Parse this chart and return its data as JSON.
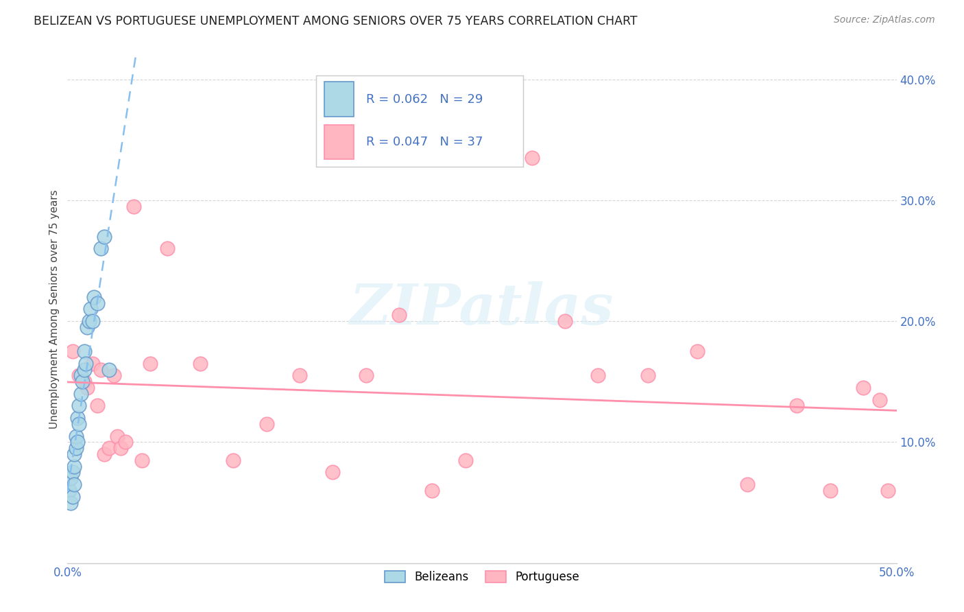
{
  "title": "BELIZEAN VS PORTUGUESE UNEMPLOYMENT AMONG SENIORS OVER 75 YEARS CORRELATION CHART",
  "source": "Source: ZipAtlas.com",
  "ylabel": "Unemployment Among Seniors over 75 years",
  "xlim": [
    0.0,
    0.5
  ],
  "ylim": [
    0.0,
    0.42
  ],
  "ytick_vals": [
    0.0,
    0.1,
    0.2,
    0.3,
    0.4
  ],
  "ytick_labels": [
    "",
    "10.0%",
    "20.0%",
    "30.0%",
    "40.0%"
  ],
  "xtick_vals": [
    0.0,
    0.1,
    0.2,
    0.3,
    0.4,
    0.5
  ],
  "xtick_labels": [
    "0.0%",
    "",
    "",
    "",
    "",
    "50.0%"
  ],
  "belizean_color": "#ADD8E6",
  "belizean_edge_color": "#6699CC",
  "portuguese_color": "#FFB6C1",
  "portuguese_edge_color": "#FF8FAB",
  "trend_belizean_color": "#87BFEE",
  "trend_portuguese_color": "#FF8FAB",
  "legend_belizean_label": "Belizeans",
  "legend_portuguese_label": "Portuguese",
  "belizean_R": 0.062,
  "belizean_N": 29,
  "portuguese_R": 0.047,
  "portuguese_N": 37,
  "watermark": "ZIPatlas",
  "belizean_x": [
    0.001,
    0.002,
    0.002,
    0.003,
    0.003,
    0.004,
    0.004,
    0.004,
    0.005,
    0.005,
    0.006,
    0.006,
    0.007,
    0.007,
    0.008,
    0.008,
    0.009,
    0.01,
    0.01,
    0.011,
    0.012,
    0.013,
    0.014,
    0.015,
    0.016,
    0.018,
    0.02,
    0.022,
    0.025
  ],
  "belizean_y": [
    0.06,
    0.05,
    0.07,
    0.055,
    0.075,
    0.065,
    0.08,
    0.09,
    0.095,
    0.105,
    0.1,
    0.12,
    0.115,
    0.13,
    0.14,
    0.155,
    0.15,
    0.16,
    0.175,
    0.165,
    0.195,
    0.2,
    0.21,
    0.2,
    0.22,
    0.215,
    0.26,
    0.27,
    0.16
  ],
  "portuguese_x": [
    0.003,
    0.007,
    0.01,
    0.012,
    0.015,
    0.018,
    0.02,
    0.022,
    0.025,
    0.028,
    0.03,
    0.032,
    0.035,
    0.04,
    0.045,
    0.05,
    0.06,
    0.08,
    0.1,
    0.12,
    0.14,
    0.16,
    0.18,
    0.2,
    0.22,
    0.24,
    0.28,
    0.3,
    0.32,
    0.35,
    0.38,
    0.41,
    0.44,
    0.46,
    0.48,
    0.49,
    0.495
  ],
  "portuguese_y": [
    0.175,
    0.155,
    0.15,
    0.145,
    0.165,
    0.13,
    0.16,
    0.09,
    0.095,
    0.155,
    0.105,
    0.095,
    0.1,
    0.295,
    0.085,
    0.165,
    0.26,
    0.165,
    0.085,
    0.115,
    0.155,
    0.075,
    0.155,
    0.205,
    0.06,
    0.085,
    0.335,
    0.2,
    0.155,
    0.155,
    0.175,
    0.065,
    0.13,
    0.06,
    0.145,
    0.135,
    0.06
  ]
}
